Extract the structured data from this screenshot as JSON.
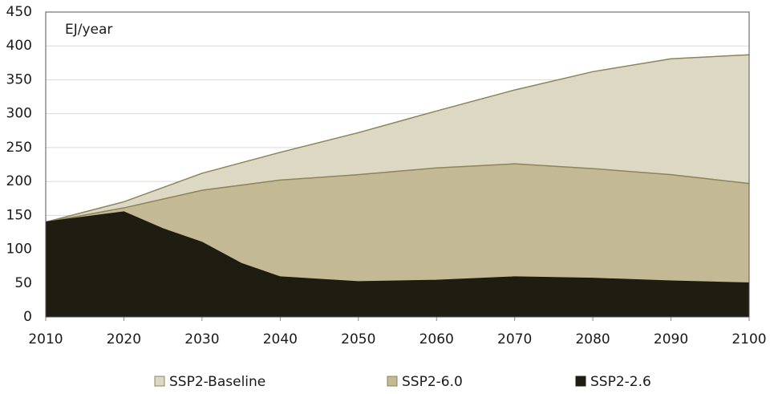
{
  "chart_data": {
    "type": "area",
    "annotation": "EJ/year",
    "series": [
      {
        "name": "SSP2-Baseline",
        "color": "#ddd8c4",
        "line_color": "#8c845a",
        "x": [
          2010,
          2020,
          2030,
          2040,
          2050,
          2060,
          2070,
          2080,
          2090,
          2100
        ],
        "values": [
          140,
          170,
          212,
          243,
          272,
          304,
          335,
          362,
          381,
          387
        ]
      },
      {
        "name": "SSP2-6.0",
        "color": "#c3b994",
        "line_color": "#8c845a",
        "x": [
          2010,
          2020,
          2030,
          2040,
          2050,
          2060,
          2070,
          2080,
          2090,
          2100
        ],
        "values": [
          140,
          161,
          187,
          202,
          210,
          220,
          226,
          219,
          210,
          197
        ]
      },
      {
        "name": "SSP2-2.6",
        "color": "#1f1c12",
        "line_color": "#1f1c12",
        "x": [
          2010,
          2020,
          2025,
          2030,
          2035,
          2040,
          2050,
          2060,
          2070,
          2080,
          2090,
          2100
        ],
        "values": [
          140,
          155,
          130,
          110,
          79,
          59,
          52,
          54,
          59,
          57,
          53,
          50
        ]
      }
    ],
    "xlim": [
      2010,
      2100
    ],
    "xticks": [
      2010,
      2020,
      2030,
      2040,
      2050,
      2060,
      2070,
      2080,
      2090,
      2100
    ],
    "ylim": [
      0,
      450
    ],
    "yticks": [
      0,
      50,
      100,
      150,
      200,
      250,
      300,
      350,
      400,
      450
    ],
    "grid": true,
    "legend": "bottom"
  }
}
